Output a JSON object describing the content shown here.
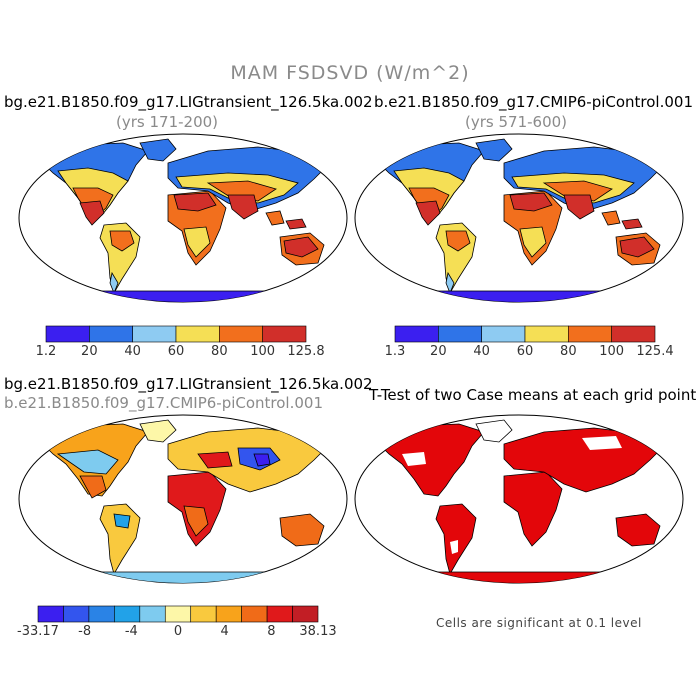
{
  "title": "MAM FSDSVD (W/m^2)",
  "panels": {
    "top_left": {
      "title": "bg.e21.B1850.f09_g17.LIGtransient_126.5ka.002",
      "years": "(yrs 171-200)"
    },
    "top_right": {
      "title": "b.e21.B1850.f09_g17.CMIP6-piControl.001",
      "years": "(yrs 571-600)"
    },
    "bottom_left": {
      "title": "bg.e21.B1850.f09_g17.LIGtransient_126.5ka.002",
      "subtitle": "b.e21.B1850.f09_g17.CMIP6-piControl.001"
    },
    "bottom_right": {
      "title": "T-Test of two Case means at each grid point",
      "note": "Cells are significant at 0.1 level"
    }
  },
  "colorbars": {
    "top_left": {
      "colors": [
        "#3b1ff0",
        "#2f74e8",
        "#8ecbf2",
        "#f5df55",
        "#f26f1d",
        "#d12f2a"
      ],
      "ticks": [
        "1.2",
        "20",
        "40",
        "60",
        "80",
        "100",
        "125.8"
      ]
    },
    "top_right": {
      "colors": [
        "#3b1ff0",
        "#2f74e8",
        "#8ecbf2",
        "#f5df55",
        "#f26f1d",
        "#d12f2a"
      ],
      "ticks": [
        "1.3",
        "20",
        "40",
        "60",
        "80",
        "100",
        "125.4"
      ]
    },
    "bottom_left": {
      "colors": [
        "#3b1ff0",
        "#3355ee",
        "#2a83e6",
        "#22a2e8",
        "#7ecbef",
        "#fdf7a8",
        "#f9c93e",
        "#f8a31b",
        "#f06b18",
        "#e0191b",
        "#c21e25"
      ],
      "ticks": [
        "-33.17",
        "-8",
        "-4",
        "0",
        "4",
        "8",
        "38.13"
      ]
    }
  },
  "colors": {
    "ocean": "#ffffff",
    "ttest_significant": "#e3060a",
    "coast": "#000000"
  }
}
